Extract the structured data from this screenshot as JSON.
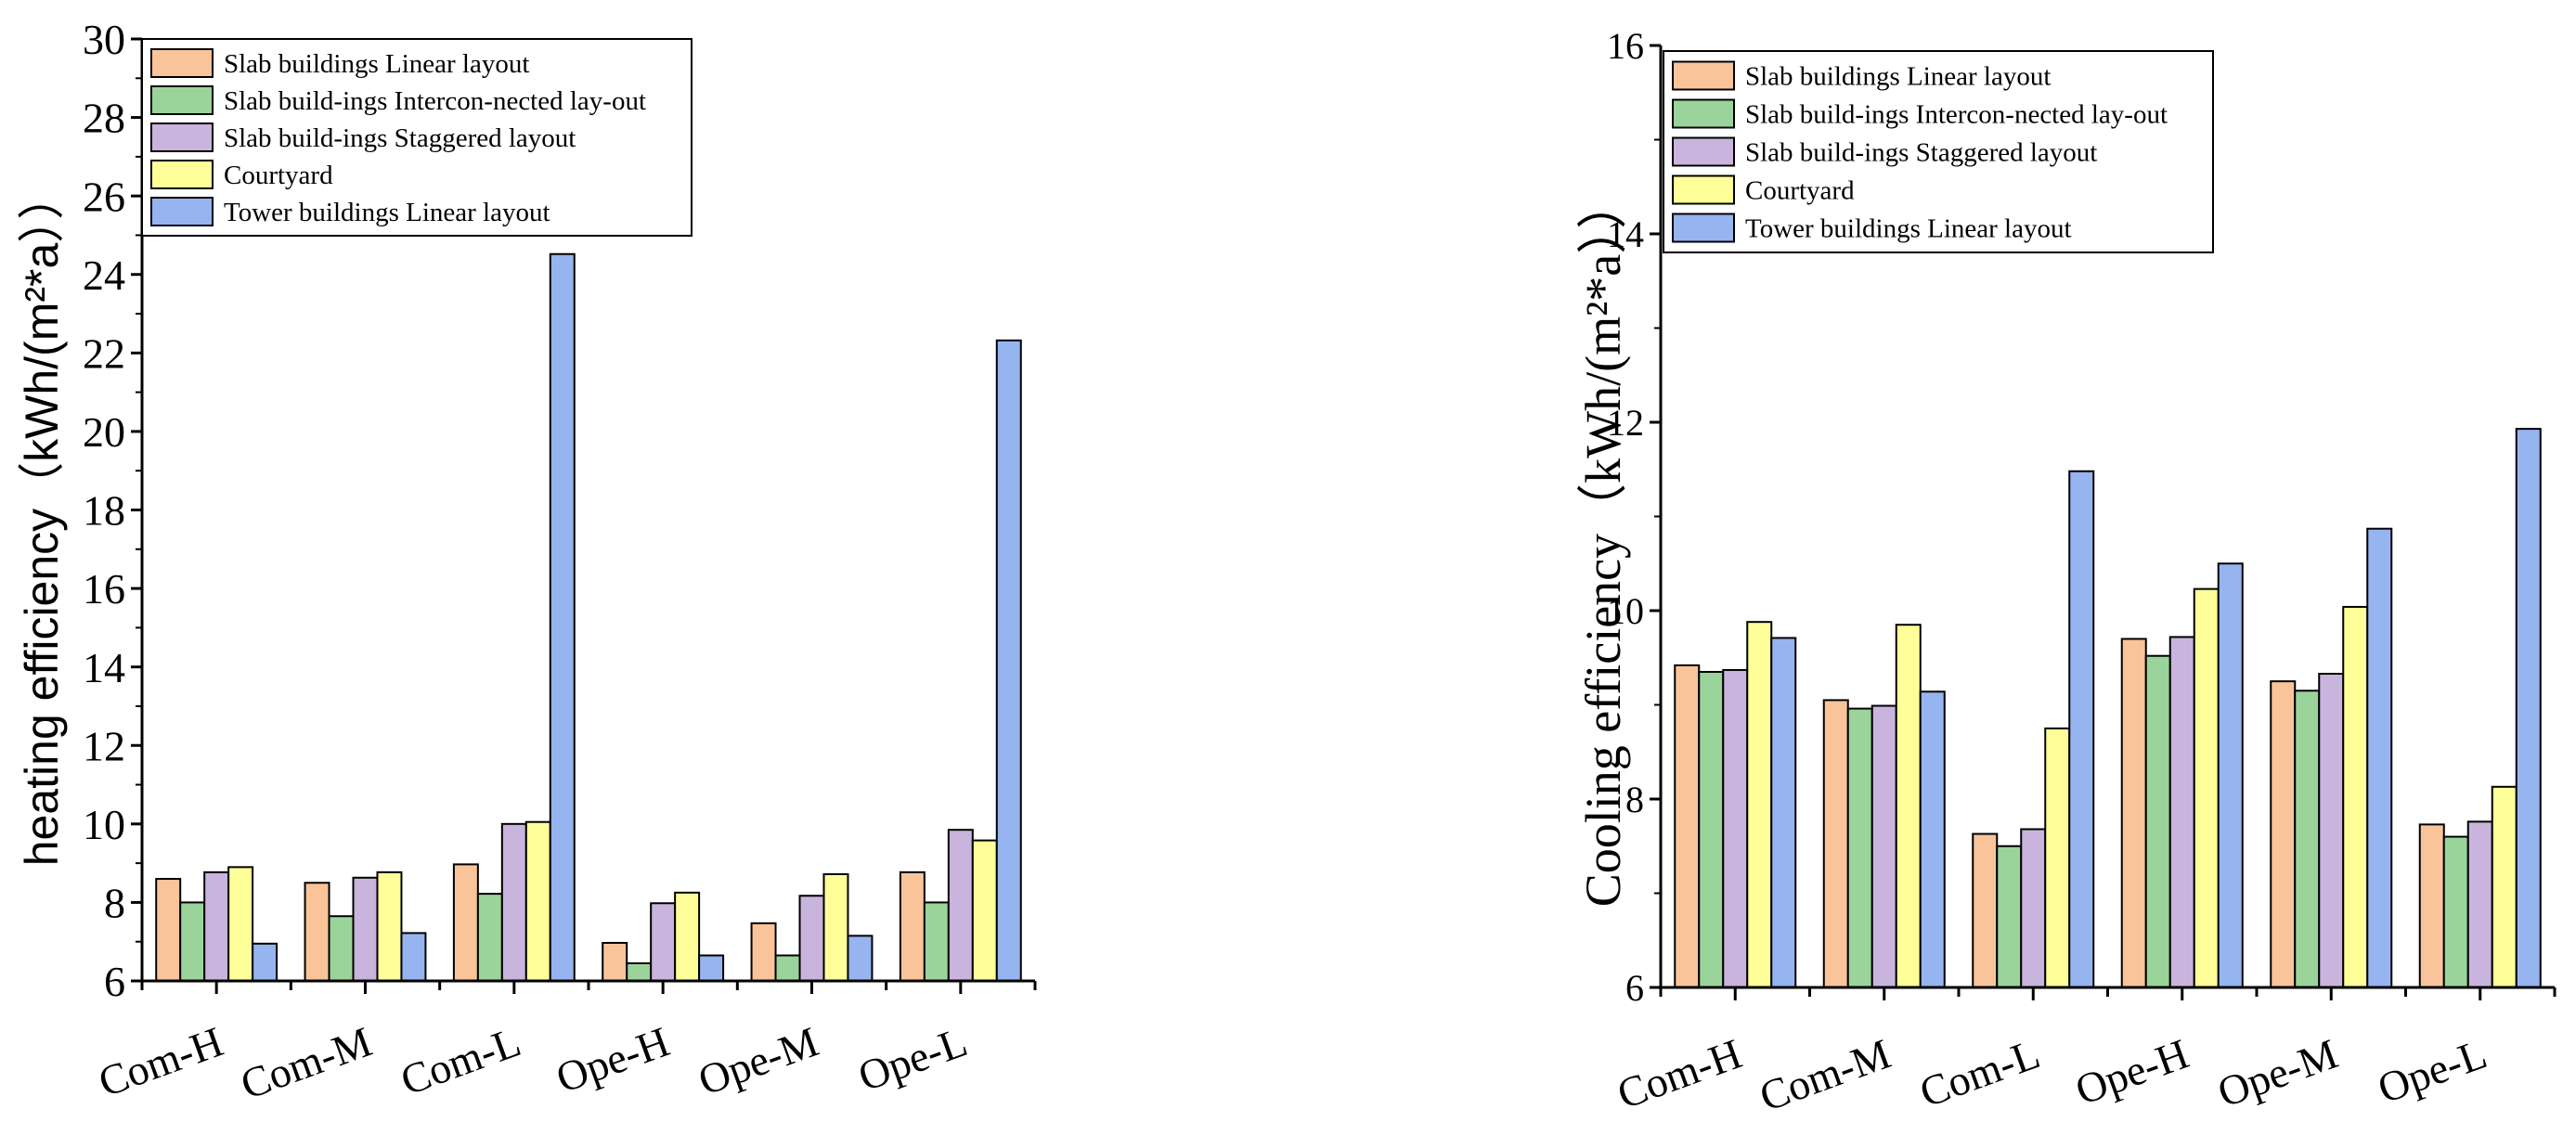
{
  "series_colors": [
    "#f9c49a",
    "#9ad49a",
    "#c8b4dc",
    "#ffff99",
    "#96b4f0"
  ],
  "chart_data": [
    {
      "type": "bar",
      "title": "",
      "xlabel": "",
      "ylabel": "heating efficiency（kWh/(m²*a））",
      "ylim": [
        6,
        30
      ],
      "yticks": [
        "6",
        "8",
        "10",
        "12",
        "14",
        "16",
        "18",
        "20",
        "22",
        "24",
        "26",
        "28",
        "30"
      ],
      "categories": [
        "Com-H",
        "Com-M",
        "Com-L",
        "Ope-H",
        "Ope-M",
        "Ope-L"
      ],
      "legend_position": "top-right",
      "series": [
        {
          "name": "Slab buildings Linear layout",
          "values": [
            8.6,
            8.5,
            8.97,
            6.97,
            7.47,
            8.77
          ]
        },
        {
          "name": "Slab build-ings Intercon-nected lay-out",
          "values": [
            8.0,
            7.65,
            8.22,
            6.45,
            6.65,
            8.0
          ]
        },
        {
          "name": "Slab build-ings Staggered layout",
          "values": [
            8.77,
            8.63,
            10.0,
            7.98,
            8.17,
            9.85
          ]
        },
        {
          "name": "Courtyard",
          "values": [
            8.9,
            8.77,
            10.05,
            8.25,
            8.72,
            9.58
          ]
        },
        {
          "name": "Tower buildings Linear layout",
          "values": [
            6.95,
            7.22,
            24.52,
            6.65,
            7.15,
            22.32
          ]
        }
      ]
    },
    {
      "type": "bar",
      "title": "",
      "xlabel": "",
      "ylabel": "Cooling efficiency（kWh/(m²*a））",
      "ylim": [
        6,
        16
      ],
      "yticks": [
        "6",
        "8",
        "10",
        "12",
        "14",
        "16"
      ],
      "categories": [
        "Com-H",
        "Com-M",
        "Com-L",
        "Ope-H",
        "Ope-M",
        "Ope-L"
      ],
      "legend_position": "top-right",
      "series": [
        {
          "name": "Slab buildings Linear layout",
          "values": [
            9.42,
            9.05,
            7.63,
            9.7,
            9.25,
            7.73
          ]
        },
        {
          "name": "Slab build-ings Intercon-nected lay-out",
          "values": [
            9.35,
            8.96,
            7.5,
            9.52,
            9.15,
            7.6
          ]
        },
        {
          "name": "Slab build-ings Staggered layout",
          "values": [
            9.37,
            8.99,
            7.68,
            9.72,
            9.33,
            7.76
          ]
        },
        {
          "name": "Courtyard",
          "values": [
            9.88,
            9.85,
            8.75,
            10.23,
            10.04,
            8.13
          ]
        },
        {
          "name": "Tower buildings Linear layout",
          "values": [
            9.71,
            9.14,
            11.48,
            10.5,
            10.87,
            11.93
          ]
        }
      ]
    }
  ]
}
